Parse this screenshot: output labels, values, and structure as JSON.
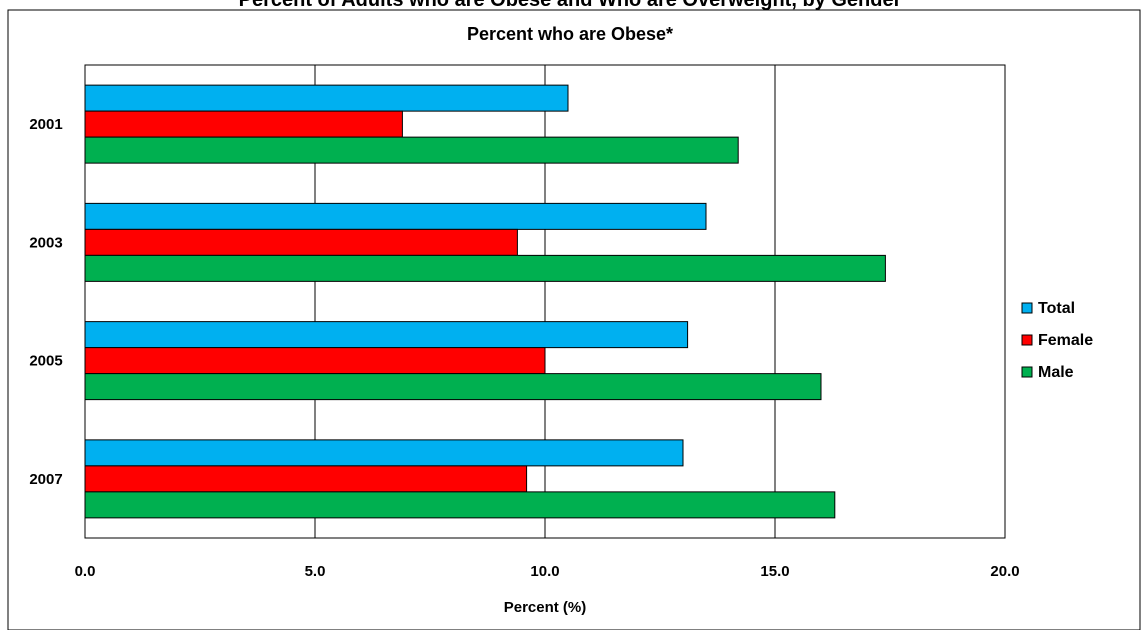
{
  "header": {
    "cut_title": "Percent of Adults who are Obese and Who are Overweight, by Gender"
  },
  "chart_data": {
    "type": "bar",
    "orientation": "horizontal",
    "title": "Percent who are Obese*",
    "xlabel": "Percent (%)",
    "ylabel": "",
    "categories": [
      "2001",
      "2003",
      "2005",
      "2007"
    ],
    "series": [
      {
        "name": "Total",
        "color": "#00b0f0",
        "values": [
          10.5,
          13.5,
          13.1,
          13.0
        ]
      },
      {
        "name": "Female",
        "color": "#ff0000",
        "values": [
          6.9,
          9.4,
          10.0,
          9.6
        ]
      },
      {
        "name": "Male",
        "color": "#00b050",
        "values": [
          14.2,
          17.4,
          16.0,
          16.3
        ]
      }
    ],
    "xlim": [
      0,
      20
    ],
    "xticks": [
      "0.0",
      "5.0",
      "10.0",
      "15.0",
      "20.0"
    ],
    "grid": "vertical",
    "legend_position": "right"
  }
}
